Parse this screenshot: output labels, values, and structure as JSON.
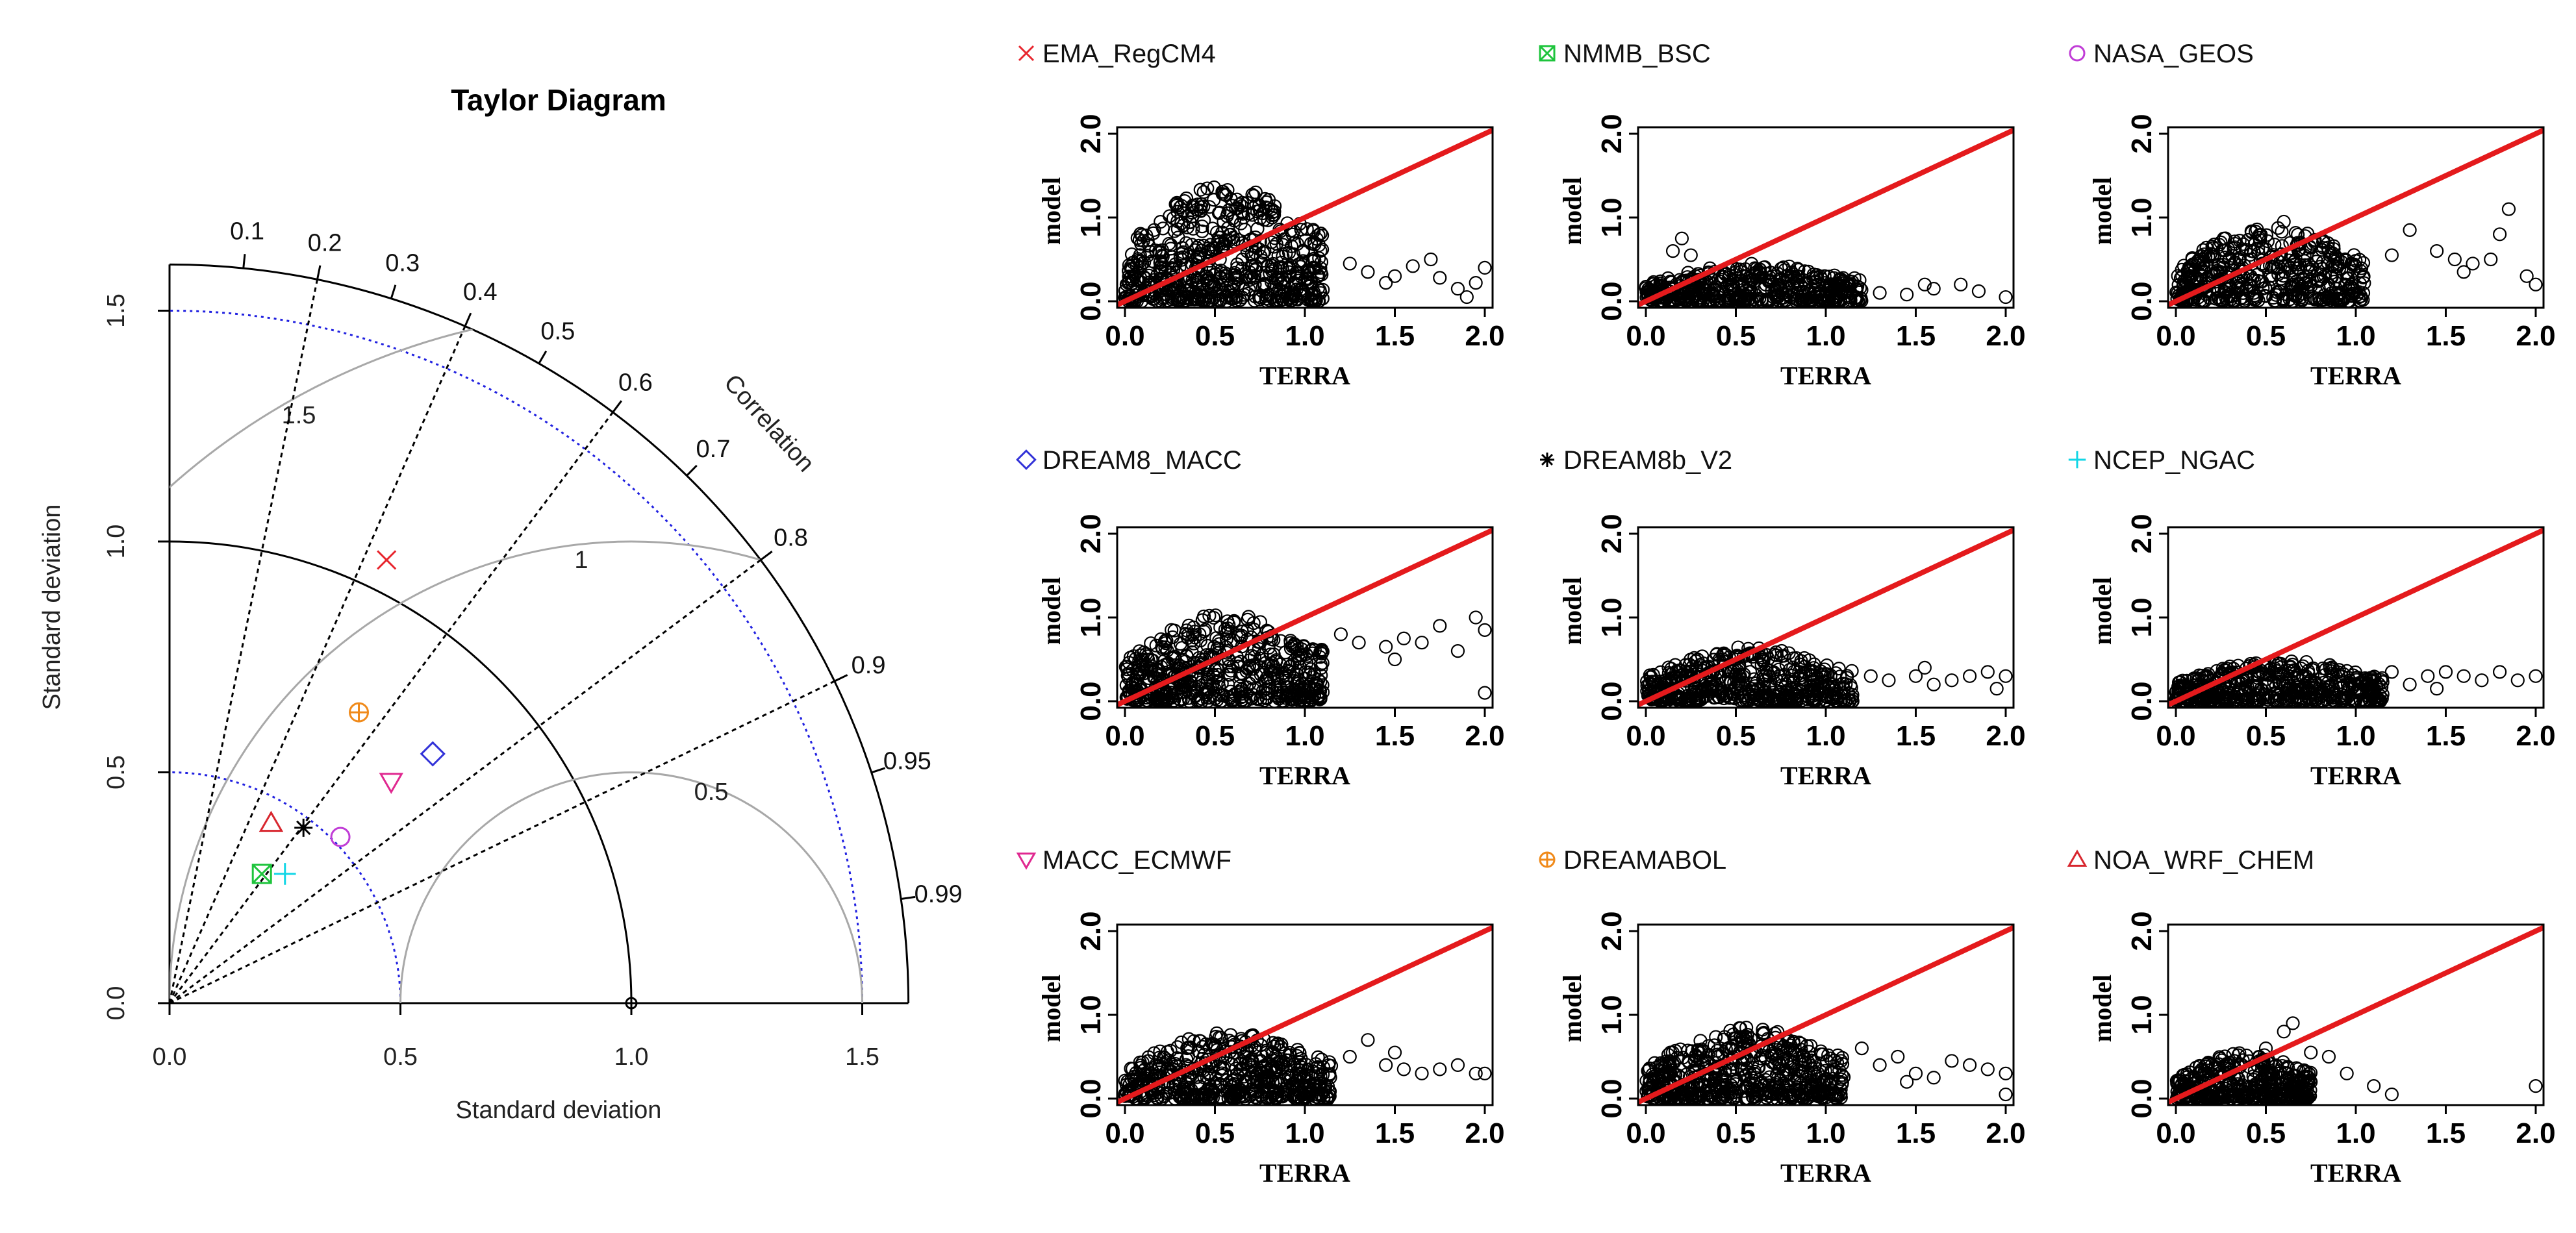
{
  "chart_data": [
    {
      "type": "taylor",
      "title": "Taylor Diagram",
      "xlabel": "Standard deviation",
      "ylabel": "Standard deviation",
      "arc_label": "Correlation",
      "sd_max": 1.6,
      "sd_ticks": [
        "0.0",
        "0.5",
        "1.0",
        "1.5"
      ],
      "sd_tick_values": [
        0,
        0.5,
        1.0,
        1.5
      ],
      "reference_sd": 1.0,
      "correlation_ticks": [
        {
          "value": 0.1,
          "label": "0.1"
        },
        {
          "value": 0.2,
          "label": "0.2"
        },
        {
          "value": 0.3,
          "label": "0.3"
        },
        {
          "value": 0.4,
          "label": "0.4"
        },
        {
          "value": 0.5,
          "label": "0.5"
        },
        {
          "value": 0.6,
          "label": "0.6"
        },
        {
          "value": 0.7,
          "label": "0.7"
        },
        {
          "value": 0.8,
          "label": "0.8"
        },
        {
          "value": 0.9,
          "label": "0.9"
        },
        {
          "value": 0.95,
          "label": "0.95"
        },
        {
          "value": 0.99,
          "label": "0.99"
        }
      ],
      "correlation_rays": [
        0.2,
        0.4,
        0.6,
        0.8,
        0.9
      ],
      "blue_sd_arcs": [
        0.5,
        1.5
      ],
      "rmsd_arcs": [
        {
          "value": 0.5,
          "label": "0.5"
        },
        {
          "value": 1.0,
          "label": "1"
        },
        {
          "value": 1.5,
          "label": "1.5"
        }
      ],
      "points": [
        {
          "name": "EMA_RegCM4",
          "marker": "x",
          "color": "#e8262e",
          "x": 0.47,
          "y": 0.96
        },
        {
          "name": "NMMB_BSC",
          "marker": "square-x",
          "color": "#1ec43c",
          "x": 0.2,
          "y": 0.28
        },
        {
          "name": "NASA_GEOS",
          "marker": "circle",
          "color": "#c03cd6",
          "x": 0.37,
          "y": 0.36
        },
        {
          "name": "DREAM8_MACC",
          "marker": "diamond",
          "color": "#3232d8",
          "x": 0.57,
          "y": 0.54
        },
        {
          "name": "DREAM8b_V2",
          "marker": "asterisk",
          "color": "#000000",
          "x": 0.29,
          "y": 0.38
        },
        {
          "name": "NCEP_NGAC",
          "marker": "plus",
          "color": "#12d6e6",
          "x": 0.25,
          "y": 0.28
        },
        {
          "name": "MACC_ECMWF",
          "marker": "triangle-down",
          "color": "#e02890",
          "x": 0.48,
          "y": 0.48
        },
        {
          "name": "DREAMABOL",
          "marker": "plus-circle",
          "color": "#f08a1a",
          "x": 0.41,
          "y": 0.63
        },
        {
          "name": "NOA_WRF_CHEM",
          "marker": "triangle",
          "color": "#d8262e",
          "x": 0.22,
          "y": 0.39
        }
      ]
    },
    {
      "type": "scatter-grid",
      "xlabel": "TERRA",
      "ylabel": "model",
      "xlim": [
        0,
        2.0
      ],
      "ylim": [
        0,
        2.0
      ],
      "x_ticks": [
        "0.0",
        "0.5",
        "1.0",
        "1.5",
        "2.0"
      ],
      "y_ticks": [
        "0.0",
        "1.0",
        "2.0"
      ],
      "line_color": "#e41a1c",
      "panels": [
        {
          "name": "EMA_RegCM4",
          "marker": "x",
          "color": "#e8262e",
          "cloud": {
            "xmax": 1.1,
            "ymax": 1.4,
            "n": 620,
            "seed": 11
          },
          "outliers": [
            [
              1.25,
              0.45
            ],
            [
              1.35,
              0.35
            ],
            [
              1.5,
              0.3
            ],
            [
              1.6,
              0.42
            ],
            [
              1.75,
              0.28
            ],
            [
              1.85,
              0.15
            ],
            [
              1.95,
              0.22
            ],
            [
              2.0,
              0.4
            ],
            [
              1.7,
              0.5
            ],
            [
              1.45,
              0.22
            ],
            [
              1.9,
              0.05
            ]
          ]
        },
        {
          "name": "NMMB_BSC",
          "marker": "square-x",
          "color": "#1ec43c",
          "cloud": {
            "xmax": 1.2,
            "ymax": 0.45,
            "n": 480,
            "seed": 23
          },
          "outliers": [
            [
              0.2,
              0.75
            ],
            [
              0.15,
              0.6
            ],
            [
              0.25,
              0.55
            ],
            [
              1.3,
              0.1
            ],
            [
              1.45,
              0.08
            ],
            [
              1.6,
              0.15
            ],
            [
              1.75,
              0.2
            ],
            [
              1.85,
              0.12
            ],
            [
              2.0,
              0.05
            ],
            [
              1.55,
              0.2
            ]
          ]
        },
        {
          "name": "NASA_GEOS",
          "marker": "circle",
          "color": "#c03cd6",
          "cloud": {
            "xmax": 1.05,
            "ymax": 0.9,
            "n": 480,
            "seed": 37
          },
          "outliers": [
            [
              1.2,
              0.55
            ],
            [
              1.3,
              0.85
            ],
            [
              1.45,
              0.6
            ],
            [
              1.55,
              0.5
            ],
            [
              1.65,
              0.45
            ],
            [
              1.75,
              0.5
            ],
            [
              1.85,
              1.1
            ],
            [
              1.95,
              0.3
            ],
            [
              2.0,
              0.2
            ],
            [
              1.6,
              0.35
            ],
            [
              1.8,
              0.8
            ],
            [
              0.6,
              0.95
            ]
          ]
        },
        {
          "name": "DREAM8_MACC",
          "marker": "diamond",
          "color": "#3232d8",
          "cloud": {
            "xmax": 1.1,
            "ymax": 1.05,
            "n": 560,
            "seed": 41
          },
          "outliers": [
            [
              1.2,
              0.8
            ],
            [
              1.3,
              0.7
            ],
            [
              1.45,
              0.65
            ],
            [
              1.55,
              0.75
            ],
            [
              1.65,
              0.7
            ],
            [
              1.75,
              0.9
            ],
            [
              1.85,
              0.6
            ],
            [
              1.95,
              1.0
            ],
            [
              2.0,
              0.1
            ],
            [
              2.0,
              0.85
            ],
            [
              1.5,
              0.5
            ]
          ]
        },
        {
          "name": "DREAM8b_V2",
          "marker": "asterisk",
          "color": "#000000",
          "cloud": {
            "xmax": 1.15,
            "ymax": 0.65,
            "n": 520,
            "seed": 53
          },
          "outliers": [
            [
              1.25,
              0.3
            ],
            [
              1.35,
              0.25
            ],
            [
              1.5,
              0.3
            ],
            [
              1.6,
              0.2
            ],
            [
              1.7,
              0.25
            ],
            [
              1.8,
              0.3
            ],
            [
              1.9,
              0.35
            ],
            [
              2.0,
              0.3
            ],
            [
              1.55,
              0.4
            ],
            [
              1.95,
              0.15
            ]
          ]
        },
        {
          "name": "NCEP_NGAC",
          "marker": "plus",
          "color": "#12d6e6",
          "cloud": {
            "xmax": 1.15,
            "ymax": 0.5,
            "n": 520,
            "seed": 67
          },
          "outliers": [
            [
              1.2,
              0.35
            ],
            [
              1.3,
              0.2
            ],
            [
              1.4,
              0.3
            ],
            [
              1.5,
              0.35
            ],
            [
              1.6,
              0.3
            ],
            [
              1.7,
              0.25
            ],
            [
              1.8,
              0.35
            ],
            [
              1.9,
              0.25
            ],
            [
              2.0,
              0.3
            ],
            [
              1.45,
              0.15
            ]
          ]
        },
        {
          "name": "MACC_ECMWF",
          "marker": "triangle-down",
          "color": "#e02890",
          "cloud": {
            "xmax": 1.15,
            "ymax": 0.8,
            "n": 540,
            "seed": 71
          },
          "outliers": [
            [
              1.25,
              0.5
            ],
            [
              1.35,
              0.7
            ],
            [
              1.45,
              0.4
            ],
            [
              1.55,
              0.35
            ],
            [
              1.65,
              0.3
            ],
            [
              1.75,
              0.35
            ],
            [
              1.85,
              0.4
            ],
            [
              1.95,
              0.3
            ],
            [
              2.0,
              0.3
            ],
            [
              1.5,
              0.55
            ]
          ]
        },
        {
          "name": "DREAMABOL",
          "marker": "plus-circle",
          "color": "#f08a1a",
          "cloud": {
            "xmax": 1.1,
            "ymax": 0.85,
            "n": 580,
            "seed": 83
          },
          "outliers": [
            [
              1.2,
              0.6
            ],
            [
              1.3,
              0.4
            ],
            [
              1.4,
              0.5
            ],
            [
              1.5,
              0.3
            ],
            [
              1.6,
              0.25
            ],
            [
              1.7,
              0.45
            ],
            [
              1.8,
              0.4
            ],
            [
              1.9,
              0.35
            ],
            [
              2.0,
              0.3
            ],
            [
              2.0,
              0.05
            ],
            [
              1.45,
              0.2
            ]
          ]
        },
        {
          "name": "NOA_WRF_CHEM",
          "marker": "triangle",
          "color": "#d8262e",
          "cloud": {
            "xmax": 0.75,
            "ymax": 0.55,
            "n": 420,
            "seed": 97
          },
          "outliers": [
            [
              0.6,
              0.8
            ],
            [
              0.65,
              0.9
            ],
            [
              0.5,
              0.6
            ],
            [
              0.75,
              0.55
            ],
            [
              0.85,
              0.5
            ],
            [
              1.1,
              0.15
            ],
            [
              1.2,
              0.05
            ],
            [
              0.95,
              0.3
            ],
            [
              2.0,
              0.15
            ]
          ]
        }
      ]
    }
  ]
}
